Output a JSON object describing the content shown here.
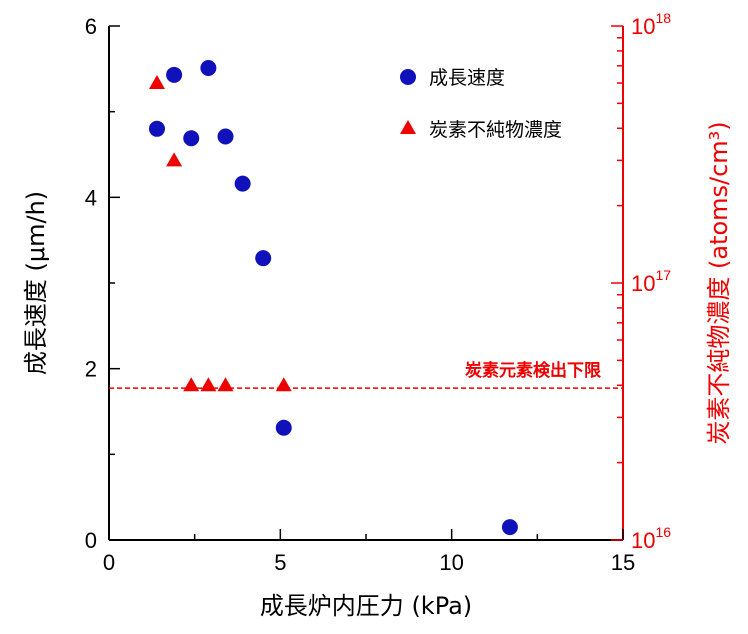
{
  "chart_data": {
    "type": "scatter",
    "xlabel": "成長炉内圧力 (kPa)",
    "ylabel": "成長速度 (μm/h)",
    "y2label": "炭素不純物濃度 (atoms/cm³)",
    "xlim": [
      0,
      15
    ],
    "ylim": [
      0,
      6
    ],
    "y2lim": [
      1e+16,
      1e+18
    ],
    "y2scale": "log",
    "x_ticks": [
      "0",
      "5",
      "10",
      "15"
    ],
    "y_ticks": [
      "0",
      "2",
      "4",
      "6"
    ],
    "y2_ticks": [
      {
        "base": "10",
        "exp": "16"
      },
      {
        "base": "10",
        "exp": "17"
      },
      {
        "base": "10",
        "exp": "18"
      }
    ],
    "grid": false,
    "legend_position": "top-right",
    "colors": {
      "growth": "#1111bb",
      "carbon": "#ee0000",
      "right_axis": "#ee0000"
    },
    "series": [
      {
        "name": "成長速度",
        "axis": "left",
        "marker": "circle",
        "points": [
          {
            "x": 1.4,
            "y": 4.8
          },
          {
            "x": 1.9,
            "y": 5.43
          },
          {
            "x": 2.4,
            "y": 4.69
          },
          {
            "x": 2.9,
            "y": 5.51
          },
          {
            "x": 3.4,
            "y": 4.71
          },
          {
            "x": 3.9,
            "y": 4.16
          },
          {
            "x": 4.5,
            "y": 3.29
          },
          {
            "x": 5.1,
            "y": 1.31
          },
          {
            "x": 11.7,
            "y": 0.15
          }
        ]
      },
      {
        "name": "炭素不純物濃度",
        "axis": "right",
        "marker": "triangle",
        "points": [
          {
            "x": 1.4,
            "y": 6e+17
          },
          {
            "x": 1.9,
            "y": 3e+17
          },
          {
            "x": 2.4,
            "y": 4e+16
          },
          {
            "x": 2.9,
            "y": 4e+16
          },
          {
            "x": 3.4,
            "y": 4e+16
          },
          {
            "x": 5.1,
            "y": 4e+16
          }
        ]
      }
    ],
    "reference_line": {
      "label": "炭素元素検出下限",
      "axis": "right",
      "value": 3.9e+16
    }
  }
}
